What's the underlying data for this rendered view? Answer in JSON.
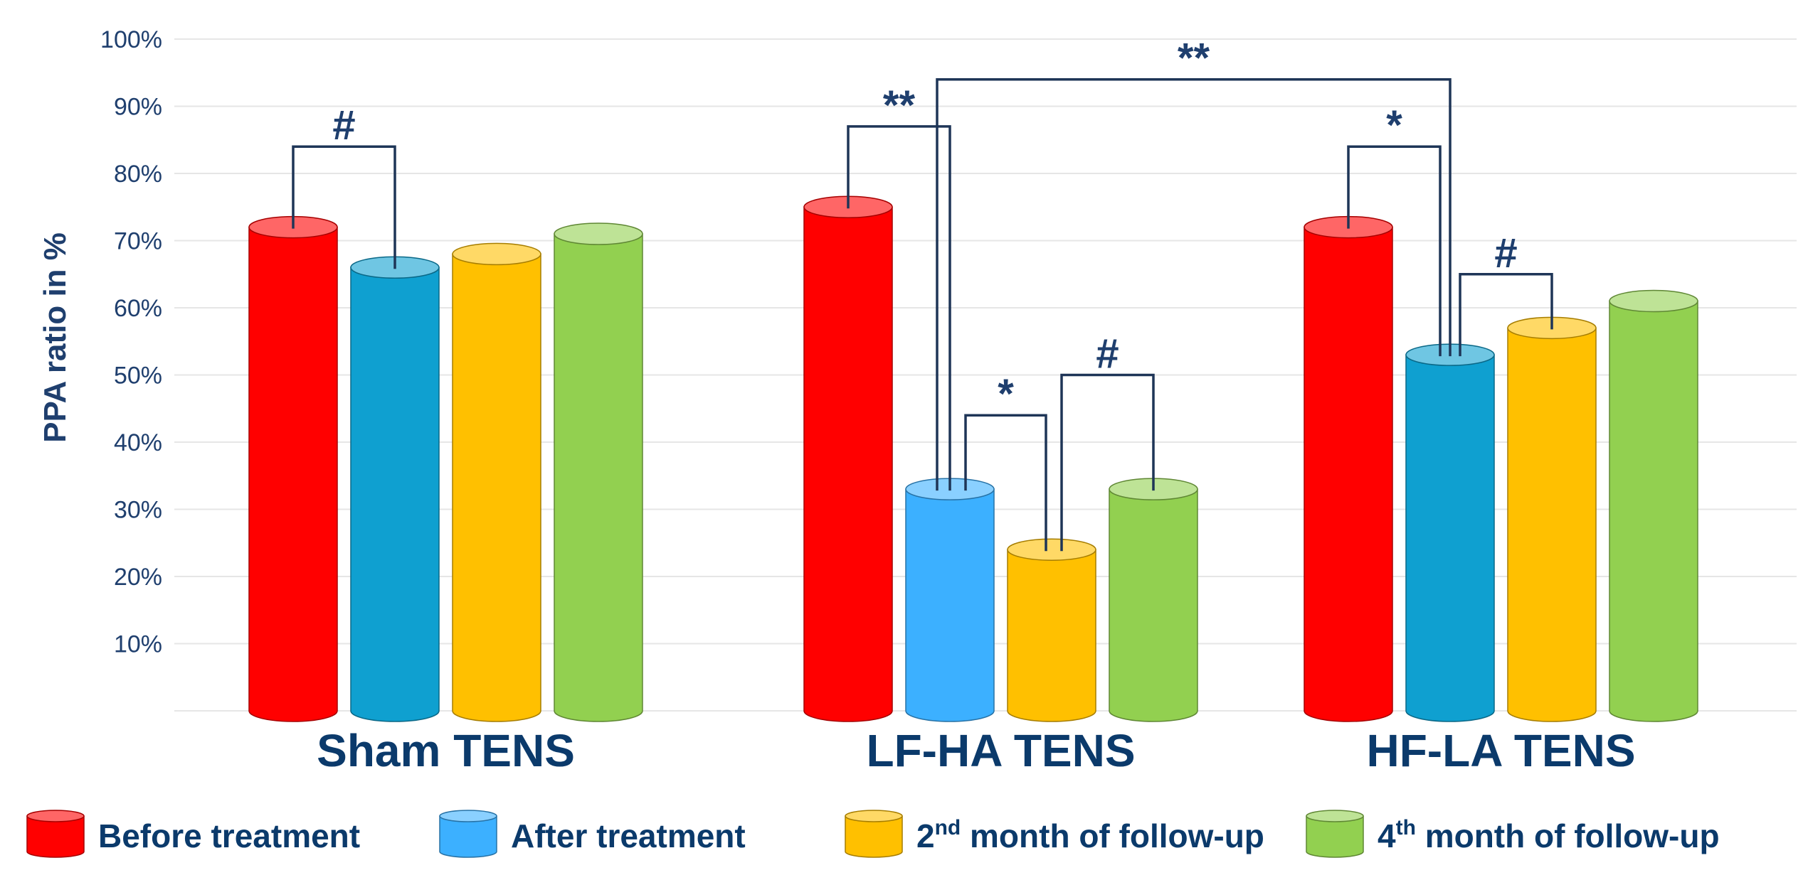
{
  "chart_data": {
    "type": "bar",
    "ylabel": "PPA ratio in %",
    "ylim": [
      0,
      100
    ],
    "yticks": [
      "10%",
      "20%",
      "30%",
      "40%",
      "50%",
      "60%",
      "70%",
      "80%",
      "90%",
      "100%"
    ],
    "grid": true,
    "bar_style": "cylinder",
    "categories": [
      "Sham TENS",
      "LF-HA TENS",
      "HF-LA TENS"
    ],
    "series": [
      {
        "name": "Before treatment",
        "color": "#ff0000",
        "values": [
          72,
          75,
          72
        ]
      },
      {
        "name": "After treatment",
        "color": "#3cb0ff",
        "values": [
          66,
          33,
          53
        ]
      },
      {
        "name": "2nd month of follow-up",
        "color": "#ffc000",
        "values": [
          68,
          24,
          57
        ]
      },
      {
        "name": "4th month of follow-up",
        "color": "#92d050",
        "values": [
          71,
          33,
          61
        ]
      }
    ],
    "series_colors_by_group": [
      [
        "#ff0000",
        "#0fa0d0",
        "#ffc000",
        "#92d050"
      ],
      [
        "#ff0000",
        "#3cb0ff",
        "#ffc000",
        "#92d050"
      ],
      [
        "#ff0000",
        "#0fa0d0",
        "#ffc000",
        "#92d050"
      ]
    ],
    "legend": {
      "placement": "bottom",
      "items": [
        {
          "main": "Before treatment",
          "sup": "",
          "rest": ""
        },
        {
          "main": "After treatment",
          "sup": "",
          "rest": ""
        },
        {
          "main": "2",
          "sup": "nd",
          "rest": " month of follow-up"
        },
        {
          "main": "4",
          "sup": "th",
          "rest": " month of follow-up"
        }
      ]
    },
    "annotations": [
      {
        "label": "#",
        "from": [
          0,
          0
        ],
        "to": [
          0,
          1
        ],
        "level": 84
      },
      {
        "label": "**",
        "from": [
          1,
          0
        ],
        "to": [
          1,
          1
        ],
        "level": 87
      },
      {
        "label": "*",
        "from": [
          1,
          1
        ],
        "to": [
          1,
          2
        ],
        "level": 44
      },
      {
        "label": "#",
        "from": [
          1,
          2
        ],
        "to": [
          1,
          3
        ],
        "level": 50
      },
      {
        "label": "**",
        "from": [
          1,
          1
        ],
        "to": [
          2,
          1
        ],
        "level": 94
      },
      {
        "label": "*",
        "from": [
          2,
          0
        ],
        "to": [
          2,
          1
        ],
        "level": 84
      },
      {
        "label": "#",
        "from": [
          2,
          1
        ],
        "to": [
          2,
          2
        ],
        "level": 65
      }
    ]
  }
}
